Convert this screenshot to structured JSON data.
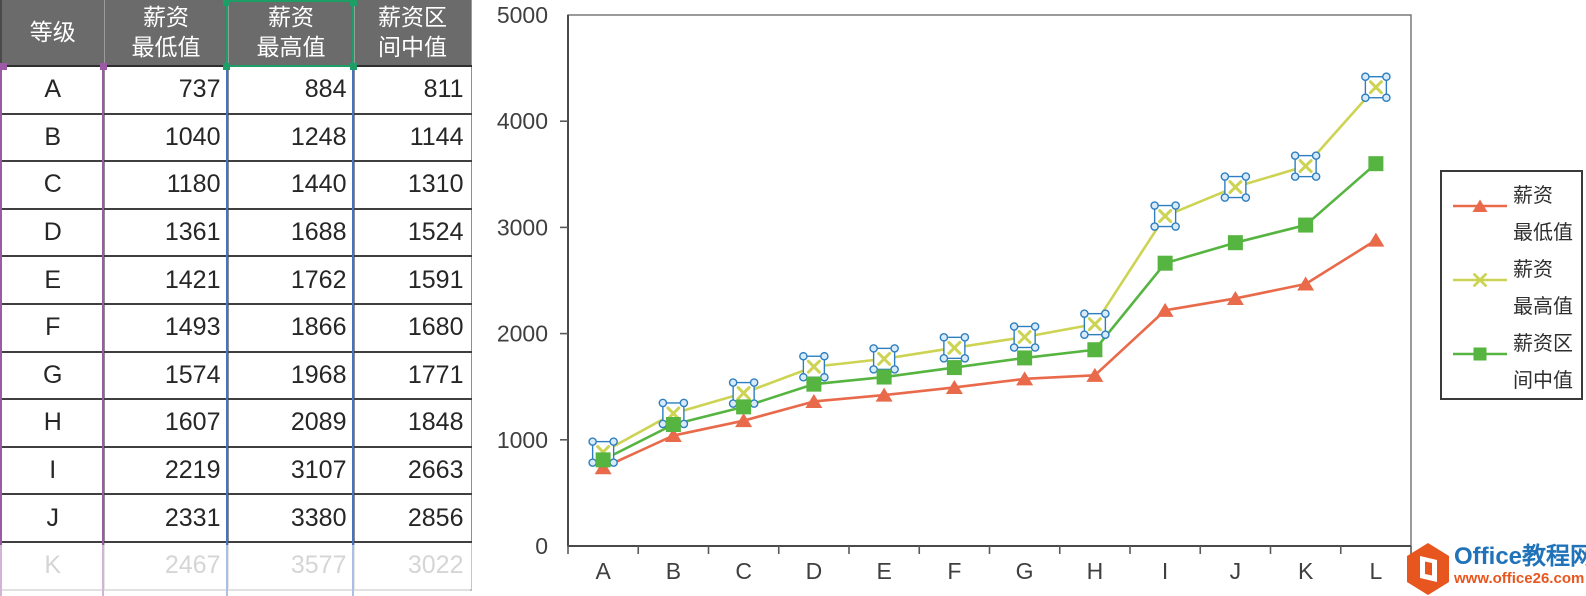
{
  "table": {
    "headers": [
      {
        "label": "等级"
      },
      {
        "label": "薪资\n最低值"
      },
      {
        "label": "薪资\n最高值",
        "selected": true
      },
      {
        "label": "薪资区\n间中值"
      }
    ],
    "rows": [
      [
        "A",
        737,
        884,
        811
      ],
      [
        "B",
        1040,
        1248,
        1144
      ],
      [
        "C",
        1180,
        1440,
        1310
      ],
      [
        "D",
        1361,
        1688,
        1524
      ],
      [
        "E",
        1421,
        1762,
        1591
      ],
      [
        "F",
        1493,
        1866,
        1680
      ],
      [
        "G",
        1574,
        1968,
        1771
      ],
      [
        "H",
        1607,
        2089,
        1848
      ],
      [
        "I",
        2219,
        3107,
        2663
      ],
      [
        "J",
        2331,
        3380,
        2856
      ],
      [
        "K",
        2467,
        3577,
        3022
      ]
    ],
    "faded_grades": [
      "K"
    ]
  },
  "chart_data": {
    "type": "line",
    "categories": [
      "A",
      "B",
      "C",
      "D",
      "E",
      "F",
      "G",
      "H",
      "I",
      "J",
      "K",
      "L"
    ],
    "series": [
      {
        "name": "薪资最低值",
        "marker": "triangle",
        "color": "#E96A4B",
        "selected": false,
        "values": [
          737,
          1040,
          1180,
          1361,
          1421,
          1493,
          1574,
          1607,
          2219,
          2331,
          2467,
          2880
        ]
      },
      {
        "name": "薪资最高值",
        "marker": "x",
        "color": "#CDD352",
        "selected": true,
        "values": [
          884,
          1248,
          1440,
          1688,
          1762,
          1866,
          1968,
          2089,
          3107,
          3380,
          3577,
          4320
        ]
      },
      {
        "name": "薪资区间中值",
        "marker": "square",
        "color": "#56B440",
        "selected": false,
        "values": [
          811,
          1144,
          1310,
          1524,
          1591,
          1680,
          1771,
          1848,
          2663,
          2856,
          3022,
          3600
        ]
      }
    ],
    "title": "",
    "xlabel": "",
    "ylabel": "",
    "ylim": [
      0,
      5000
    ],
    "ytick_step": 1000,
    "yticks": [
      "0",
      "1000",
      "2000",
      "3000",
      "4000",
      "5000"
    ],
    "grid": false,
    "legend_position": "right"
  },
  "legend": {
    "items": [
      {
        "label": "薪资\n最低值"
      },
      {
        "label": "薪资\n最高值"
      },
      {
        "label": "薪资区\n间中值"
      }
    ]
  },
  "watermark": {
    "site_name": "Office教程网",
    "url": "www.office26.com"
  },
  "colors": {
    "selection_handle_blue": "#2E7FC0",
    "selection_handle_fill": "#D9EAF8",
    "range_values_blue": "#4472C4",
    "range_name_green": "#1D9E66",
    "range_category_purple": "#9B59A6",
    "header_bg": "#6B6B6B",
    "axis_text": "#3F3F3F"
  }
}
